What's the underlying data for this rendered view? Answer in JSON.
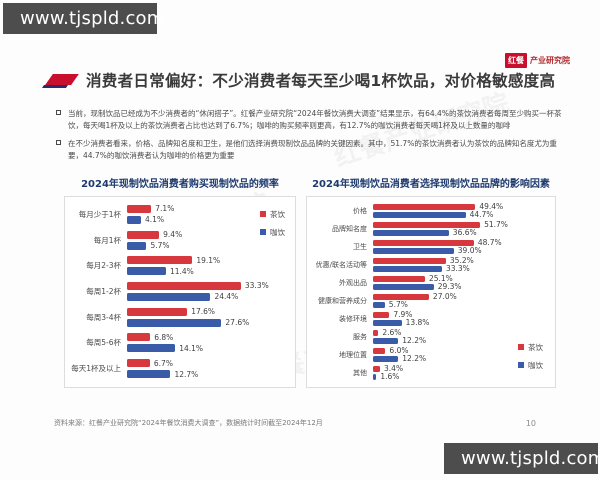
{
  "banners": {
    "top": "www.tjspld.com",
    "bottom": "www.tjspld.com"
  },
  "logo": {
    "brand": "红餐",
    "suffix": "产业研究院"
  },
  "title": "消费者日常偏好：不少消费者每天至少喝1杯饮品，对价格敏感度高",
  "bullets": [
    "当前，现制饮品已经成为不少消费者的“休闲搭子”。红餐产业研究院“2024年餐饮消费大调查”结果显示，有64.4%的茶饮消费者每周至少购买一杯茶饮，每天喝1杯及以上的茶饮消费者占比也达到了6.7%；咖啡的购买频率则更高，有12.7%的咖饮消费者每天喝1杯及以上数量的咖啡",
    "在不少消费者看来，价格、品牌知名度和卫生，是他们选择消费现制饮品品牌的关键因素。其中，51.7%的茶饮消费者认为茶饮的品牌知名度尤为重要，44.7%的咖饮消费者认为咖啡的价格更为重要"
  ],
  "footer": {
    "source": "资料来源：红餐产业研究院“2024年餐饮消费大调查”，数据统计时间截至2024年12月",
    "page": "10"
  },
  "watermark": "红餐产业研究院",
  "colors": {
    "tea": "#d7383e",
    "coffee": "#3a5ca8",
    "chart_title": "#1e3a6e",
    "accent_red": "#c8102e",
    "accent_navy": "#2d2a70",
    "banner_bg": "#4d4d4d"
  },
  "chart_data": [
    {
      "type": "bar",
      "orientation": "horizontal",
      "title": "2024年现制饮品消费者购买现制饮品的频率",
      "categories": [
        "每月少于1杯",
        "每月1杯",
        "每月2-3杯",
        "每周1-2杯",
        "每周3-4杯",
        "每周5-6杯",
        "每天1杯及以上"
      ],
      "series": [
        {
          "name": "茶饮",
          "color_key": "tea",
          "values": [
            7.1,
            9.4,
            19.1,
            33.3,
            17.6,
            6.8,
            6.7
          ]
        },
        {
          "name": "咖饮",
          "color_key": "coffee",
          "values": [
            4.1,
            5.7,
            11.4,
            24.4,
            27.6,
            14.1,
            12.7
          ]
        }
      ],
      "value_suffix": "%",
      "xlim": [
        0,
        35
      ],
      "grid": false,
      "legend_position": "top-right"
    },
    {
      "type": "bar",
      "orientation": "horizontal",
      "title": "2024年现制饮品消费者选择现制饮品品牌的影响因素",
      "categories": [
        "价格",
        "品牌知名度",
        "卫生",
        "优惠/联名活动等",
        "外观出品",
        "健康和营养成分",
        "装修环境",
        "服务",
        "地理位置",
        "其他"
      ],
      "series": [
        {
          "name": "茶饮",
          "color_key": "tea",
          "values": [
            49.4,
            51.7,
            48.7,
            35.2,
            25.1,
            27.0,
            7.9,
            2.6,
            6.0,
            3.4
          ]
        },
        {
          "name": "咖饮",
          "color_key": "coffee",
          "values": [
            44.7,
            36.6,
            39.0,
            33.3,
            29.3,
            5.7,
            13.8,
            12.2,
            12.2,
            1.6
          ]
        }
      ],
      "value_suffix": "%",
      "xlim": [
        0,
        55
      ],
      "grid": false,
      "legend_position": "bottom-right"
    }
  ]
}
